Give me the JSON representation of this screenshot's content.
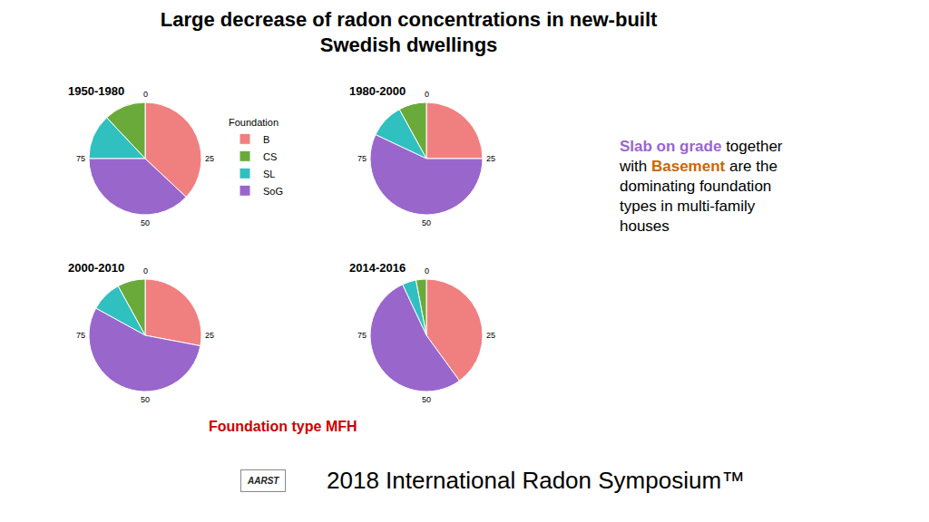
{
  "title": "Large decrease of radon concentrations in new-built\nSwedish dwellings",
  "xlabel": {
    "text": "Foundation type MFH",
    "color": "#cc0000"
  },
  "annotations": [
    {
      "lines": [
        [
          {
            "text": "Slab on grade",
            "color": "#9966CC"
          },
          {
            "text": " together"
          }
        ],
        [
          {
            "text": "with "
          },
          {
            "text": "Basement",
            "color": "#cc6600"
          },
          {
            "text": " are the"
          }
        ],
        [
          {
            "text": "dominating foundation"
          }
        ],
        [
          {
            "text": "types in multi-family"
          }
        ],
        [
          {
            "text": "houses"
          }
        ]
      ]
    },
    {
      "text": "AARST"
    },
    {
      "text": "2018 International Radon Symposium™"
    }
  ],
  "chart_data": [
    {
      "type": "pie",
      "title": "1950-1980",
      "categories": [
        "B",
        "CS",
        "SL",
        "SoG"
      ],
      "values": [
        37,
        12,
        13,
        38
      ],
      "colors": [
        "#F08080",
        "#6aaa3a",
        "#30c0c0",
        "#9966CC"
      ],
      "legend_title": "Foundation",
      "ticks": [
        0,
        25,
        50,
        75
      ]
    },
    {
      "type": "pie",
      "title": "1980-2000",
      "categories": [
        "B",
        "CS",
        "SL",
        "SoG"
      ],
      "values": [
        25,
        8,
        10,
        57
      ],
      "colors": [
        "#F08080",
        "#6aaa3a",
        "#30c0c0",
        "#9966CC"
      ],
      "legend_title": "Foundation",
      "ticks": [
        0,
        25,
        50,
        75
      ]
    },
    {
      "type": "pie",
      "title": "2000-2010",
      "categories": [
        "B",
        "CS",
        "SL",
        "SoG"
      ],
      "values": [
        28,
        8,
        9,
        55
      ],
      "colors": [
        "#F08080",
        "#6aaa3a",
        "#30c0c0",
        "#9966CC"
      ],
      "legend_title": "Foundation",
      "ticks": [
        0,
        25,
        50,
        75
      ]
    },
    {
      "type": "pie",
      "title": "2014-2016",
      "categories": [
        "B",
        "CS",
        "SL",
        "SoG"
      ],
      "values": [
        40,
        3,
        4,
        53
      ],
      "colors": [
        "#F08080",
        "#6aaa3a",
        "#30c0c0",
        "#9966CC"
      ],
      "legend_title": "Foundation",
      "ticks": [
        0,
        25,
        50,
        75
      ]
    }
  ]
}
